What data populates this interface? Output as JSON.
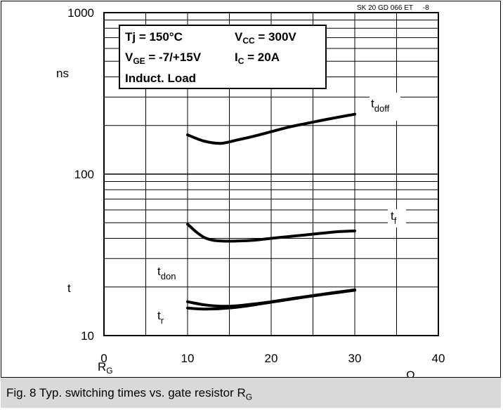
{
  "chart_data": {
    "type": "line",
    "source_tag": "SK 20 GD 066 ET     -8",
    "conditions": [
      {
        "main": "Tj = 150°C",
        "sub": "",
        "tail": ""
      },
      {
        "main": "V",
        "sub": "CC",
        "tail": " = 300V"
      },
      {
        "main": "V",
        "sub": "GE",
        "tail": " = -7/+15V"
      },
      {
        "main": "I",
        "sub": "C",
        "tail": "  = 20A"
      },
      {
        "main": "Induct. Load",
        "sub": "",
        "tail": ""
      }
    ],
    "ylabel_unit": "ns",
    "ylabel_var": "t",
    "xlabel_var": "R",
    "xlabel_sub": "G",
    "xlabel_unit": "Ω",
    "x_ticks": [
      0,
      10,
      20,
      30,
      40
    ],
    "y_ticks": [
      10,
      100,
      1000
    ],
    "xlim": [
      0,
      40
    ],
    "ylim": [
      10,
      1000
    ],
    "y_scale": "log",
    "grid": true,
    "series": [
      {
        "name": "t",
        "name_sub": "doff",
        "x": [
          10,
          12,
          14,
          16,
          18,
          20,
          22,
          24,
          26,
          28,
          30
        ],
        "y": [
          175,
          160,
          155,
          163,
          172,
          183,
          195,
          205,
          215,
          225,
          235
        ]
      },
      {
        "name": "t",
        "name_sub": "f",
        "x": [
          10,
          11,
          12,
          13,
          14,
          16,
          18,
          20,
          22,
          24,
          26,
          28,
          30
        ],
        "y": [
          49,
          44,
          40.5,
          39,
          38.5,
          38.5,
          39,
          40,
          41,
          42,
          43,
          44,
          44.5
        ]
      },
      {
        "name": "t",
        "name_sub": "don",
        "x": [
          10,
          12,
          14,
          16,
          18,
          20,
          22,
          24,
          26,
          28,
          30
        ],
        "y": [
          16.2,
          15.5,
          15.2,
          15.3,
          15.7,
          16.2,
          16.8,
          17.4,
          18,
          18.6,
          19.2
        ]
      },
      {
        "name": "t",
        "name_sub": "r",
        "x": [
          10,
          12,
          14,
          16,
          18,
          20,
          22,
          24,
          26,
          28,
          30
        ],
        "y": [
          14.8,
          14.6,
          14.7,
          15,
          15.5,
          16.1,
          16.7,
          17.3,
          17.9,
          18.5,
          19.1
        ]
      }
    ]
  },
  "caption": {
    "text": "Fig. 8 Typ. switching times vs. gate resistor R",
    "sub": "G"
  }
}
